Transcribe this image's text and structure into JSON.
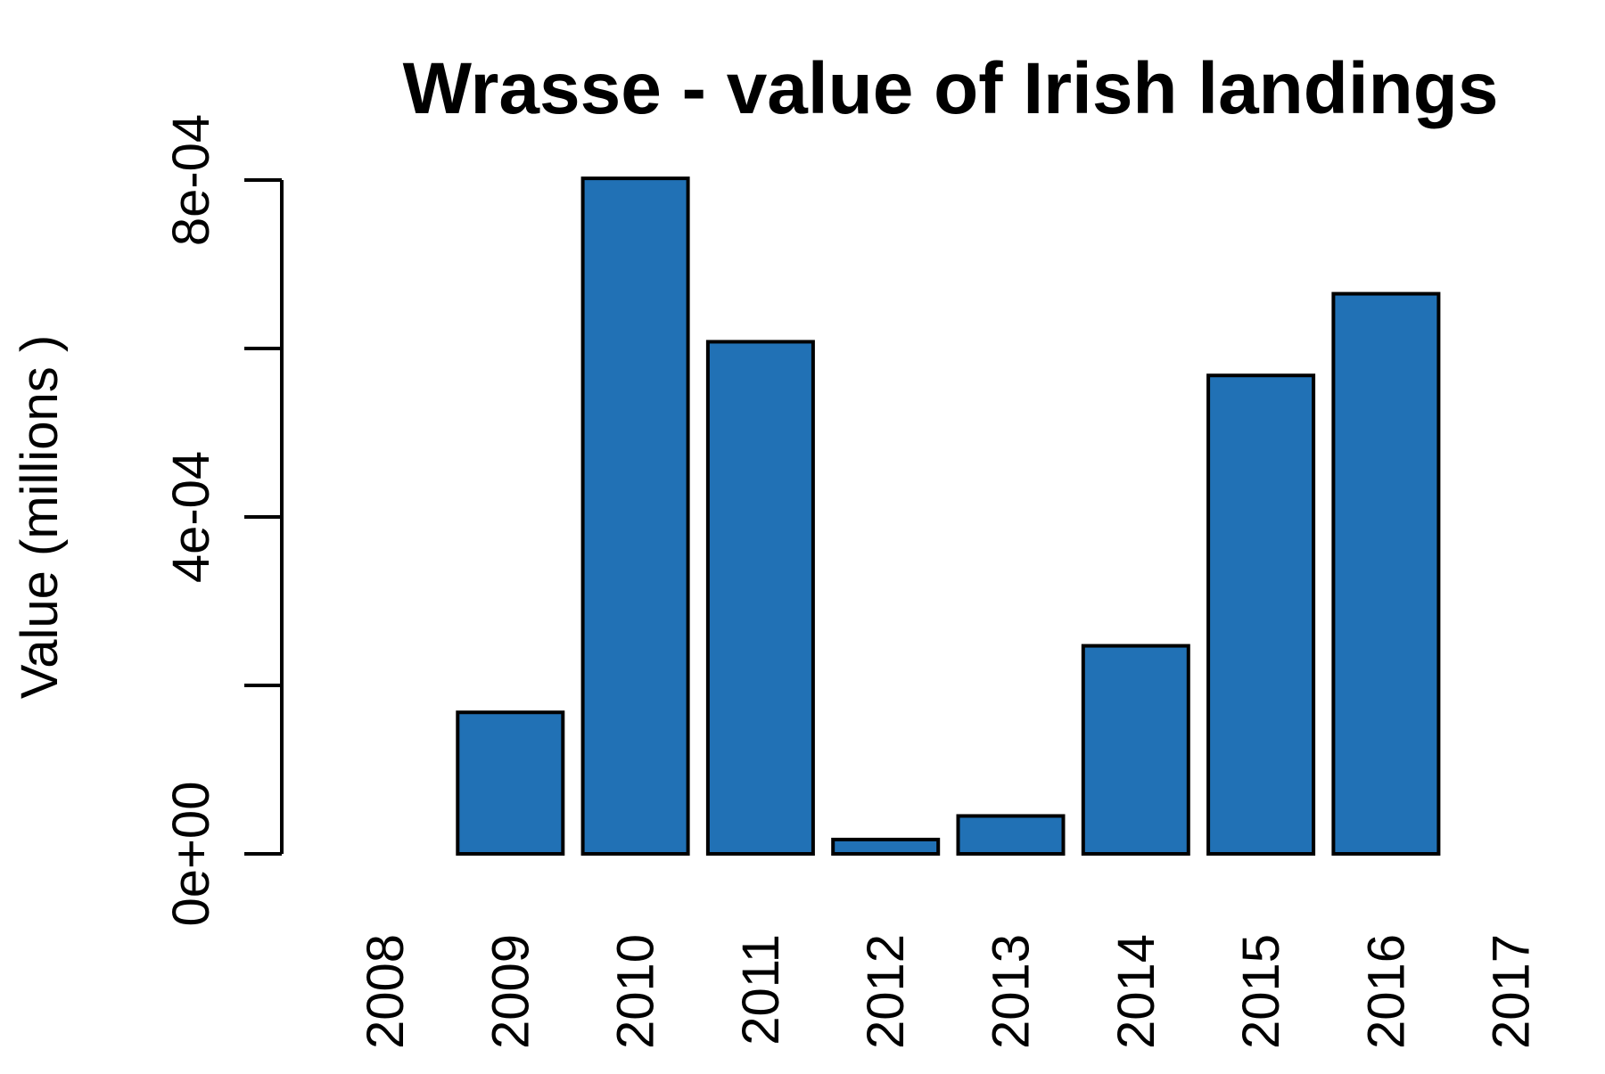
{
  "chart_data": {
    "type": "bar",
    "title": "Wrasse - value of Irish landings",
    "xlabel": "",
    "ylabel": "Value (millions )",
    "categories": [
      "2008",
      "2009",
      "2010",
      "2011",
      "2012",
      "2013",
      "2014",
      "2015",
      "2016",
      "2017"
    ],
    "values": [
      0,
      0.000168,
      0.000802,
      0.000608,
      1.7e-05,
      4.5e-05,
      0.000247,
      0.000568,
      0.000665,
      0
    ],
    "ylim": [
      0,
      0.0008
    ],
    "yticks": [
      0,
      0.0002,
      0.0004,
      0.0006,
      0.0008
    ],
    "ytick_labels": [
      "0e+00",
      "",
      "4e-04",
      "",
      "8e-04"
    ],
    "bar_color": "#2171B5",
    "bar_edge_color": "#000000",
    "grid": false,
    "legend": "none"
  }
}
